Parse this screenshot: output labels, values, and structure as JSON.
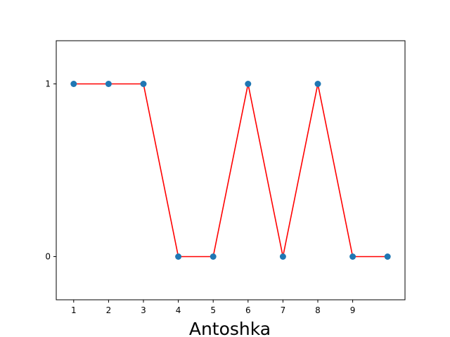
{
  "chart_data": {
    "type": "line",
    "title": "",
    "xlabel": "Antoshka",
    "ylabel": "",
    "x": [
      1,
      2,
      3,
      4,
      5,
      6,
      7,
      8,
      9,
      10
    ],
    "y": [
      1,
      1,
      1,
      0,
      0,
      1,
      0,
      1,
      0,
      0
    ],
    "x_ticks": [
      1,
      2,
      3,
      4,
      5,
      6,
      7,
      8,
      9
    ],
    "y_ticks": [
      0,
      1
    ],
    "xlim": [
      0.5,
      10.5
    ],
    "ylim": [
      -0.25,
      1.25
    ],
    "grid": false,
    "legend": "none",
    "line_color": "#ff0000",
    "marker_color": "#1f77b4"
  }
}
